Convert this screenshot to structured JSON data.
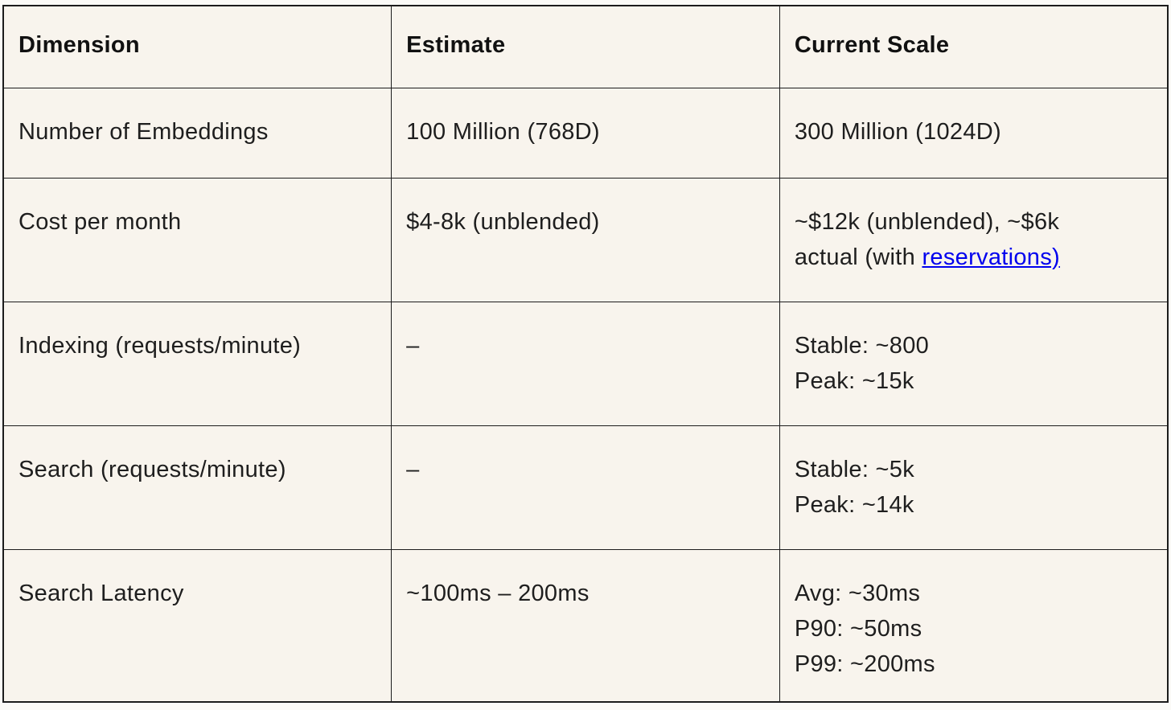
{
  "palette": {
    "page_bg": "#fbfaf7",
    "table_bg": "#f8f4ed",
    "border": "#1c1c1c",
    "text": "#1e1e1e",
    "heading": "#111111",
    "link": "#0000ee"
  },
  "table": {
    "headers": [
      "Dimension",
      "Estimate",
      "Current Scale"
    ],
    "rows": [
      {
        "dimension": "Number of Embeddings",
        "estimate": "100 Million (768D)",
        "current_scale": "300 Million (1024D)"
      },
      {
        "dimension": "Cost per month",
        "estimate": "$4-8k (unblended)",
        "current_scale_before_link": "~$12k (unblended), ~$6k\nactual (with ",
        "current_scale_link": "reservations)"
      },
      {
        "dimension": "Indexing (requests/minute)",
        "estimate": "–",
        "current_scale": "Stable: ~800\nPeak: ~15k"
      },
      {
        "dimension": "Search (requests/minute)",
        "estimate": "–",
        "current_scale": "Stable: ~5k\nPeak: ~14k"
      },
      {
        "dimension": "Search Latency",
        "estimate": "~100ms – 200ms",
        "current_scale": "Avg: ~30ms\nP90: ~50ms\nP99: ~200ms"
      }
    ]
  }
}
